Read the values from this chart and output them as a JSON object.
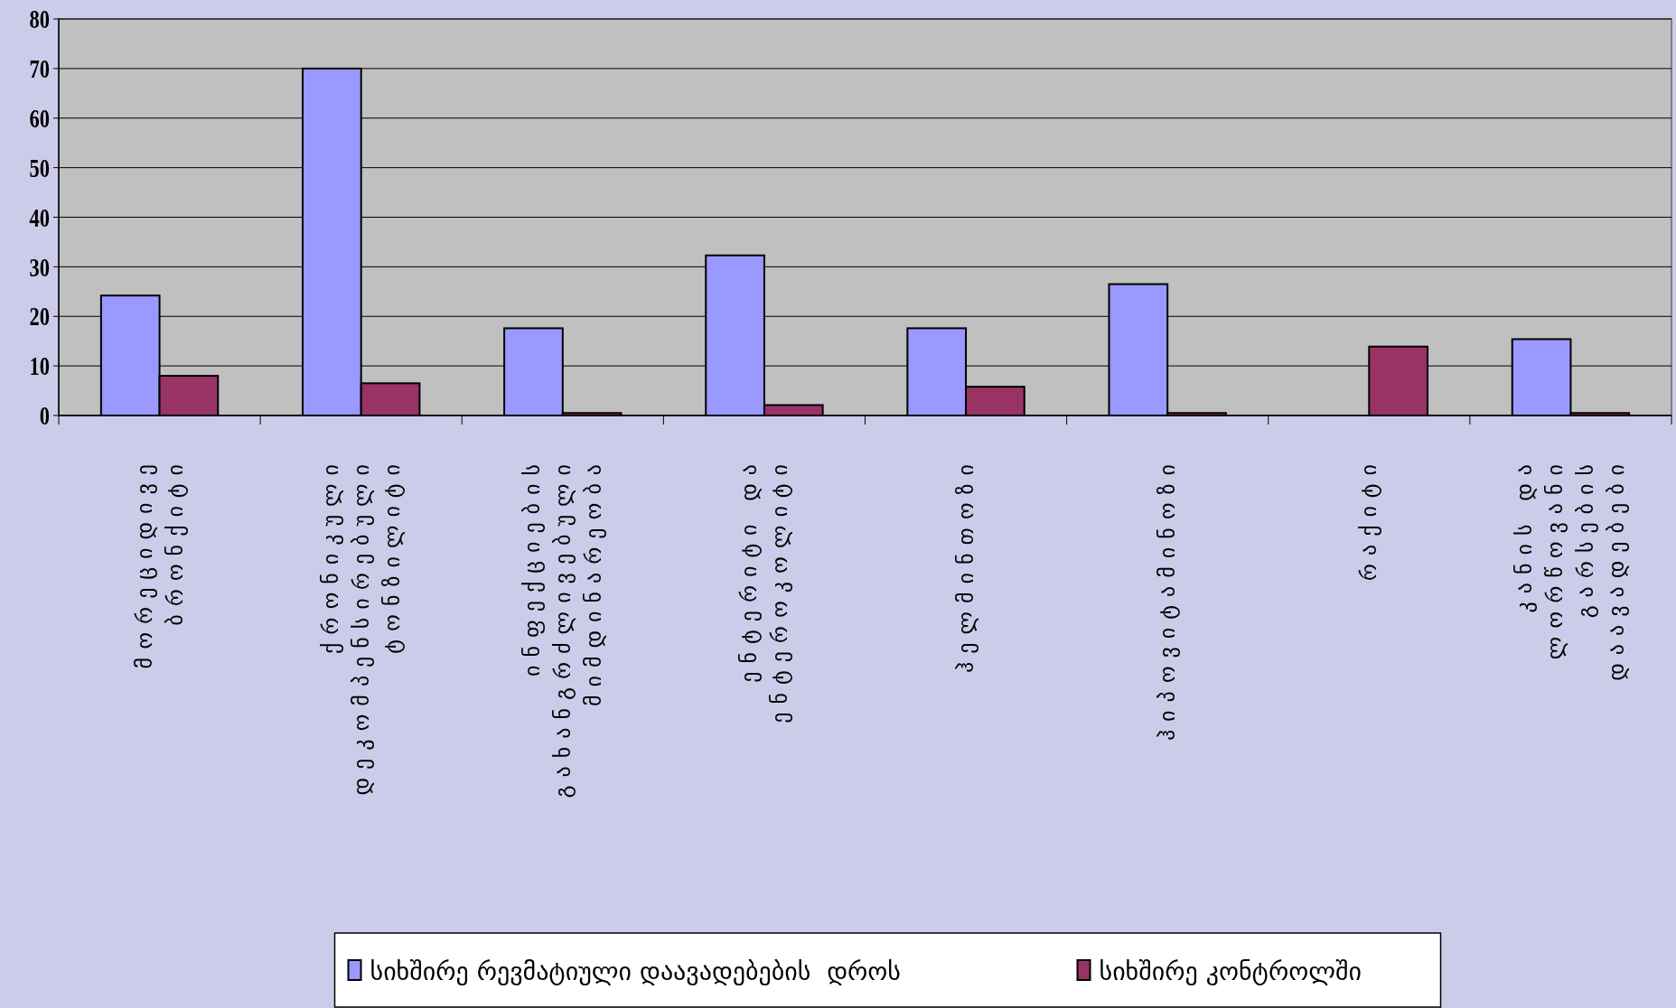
{
  "chart_data": {
    "type": "bar",
    "categories": [
      "მორეციდივე ბრონქიტი",
      "ქრონიკული დეკომპენსირებული ტონზილიტი",
      "ინფექციების გახანგრძლივებული მიმდინარეობა",
      "ენტერიტი და ენტეროკოლიტი",
      "ჰელმინთოზი",
      "ჰიპოვიტამინოზი",
      "რაქიტი",
      "კანის და ლორწოვანი გარსების დაავადებები"
    ],
    "series": [
      {
        "name": "სიხშირე რევმატიული დაავადებების  დროს",
        "color": "#9999ff",
        "values": [
          24.2,
          70,
          17.6,
          32.3,
          17.6,
          26.5,
          null,
          15.4
        ]
      },
      {
        "name": "სიხშირე კონტროლში",
        "color": "#993366",
        "values": [
          8,
          6.5,
          0.5,
          2.1,
          5.8,
          0.5,
          13.9,
          0.5
        ]
      }
    ],
    "ylim": [
      0,
      80
    ],
    "yticks": [
      0,
      10,
      20,
      30,
      40,
      50,
      60,
      70,
      80
    ],
    "grid": "y",
    "legend": "bottom"
  }
}
